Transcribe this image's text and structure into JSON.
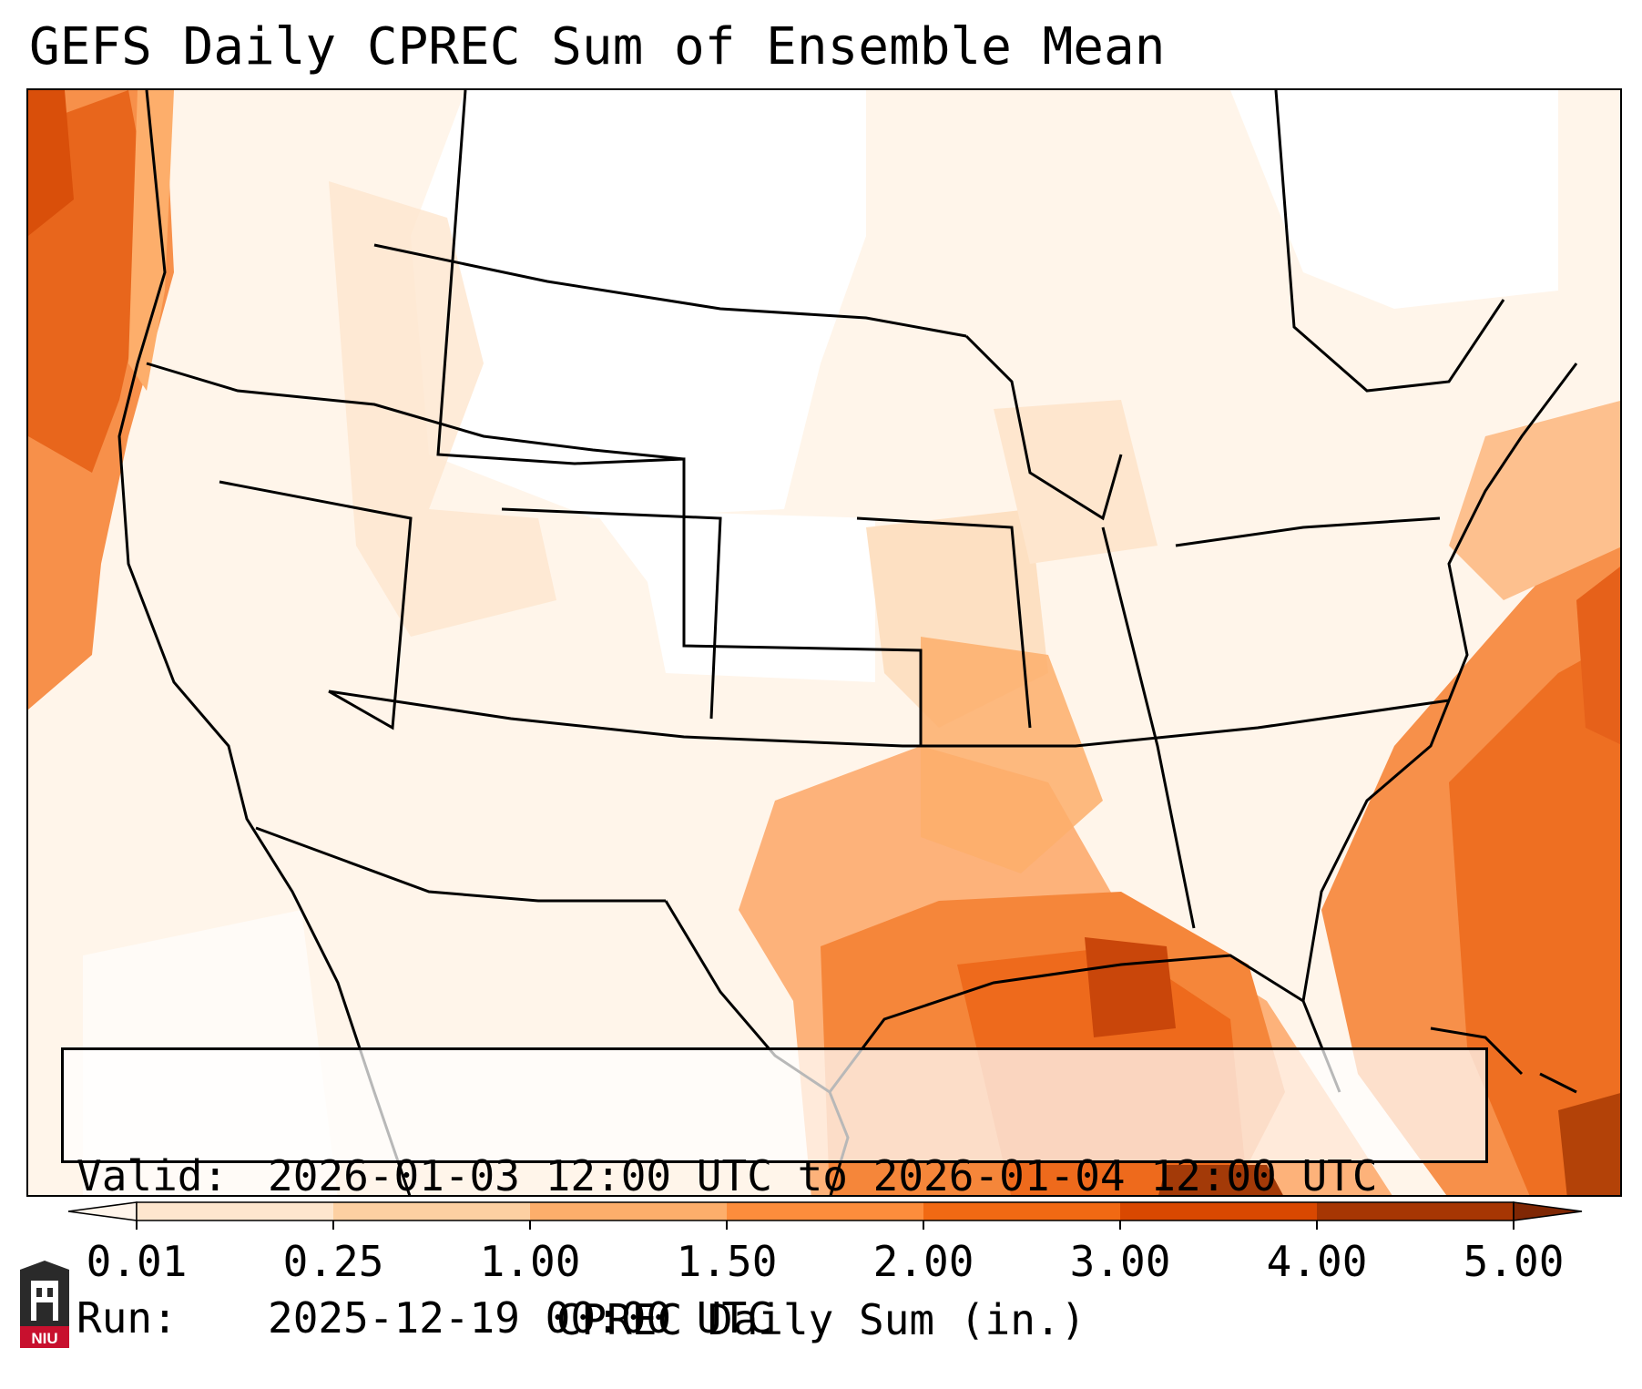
{
  "title": "GEFS Daily CPREC Sum of Ensemble Mean",
  "valid": {
    "label": "Valid:",
    "value": "2026-01-03 12:00 UTC to 2026-01-04 12:00 UTC"
  },
  "run": {
    "label": "Run:",
    "value": "2025-12-19 00:00 UTC"
  },
  "colorbar": {
    "title": "CPREC Daily Sum (in.)",
    "ticks": [
      "0.01",
      "0.25",
      "1.00",
      "1.50",
      "2.00",
      "3.00",
      "4.00",
      "5.00"
    ],
    "colors": [
      "#fff5eb",
      "#fee6ce",
      "#fdd0a2",
      "#fdae6b",
      "#fd8d3c",
      "#f16913",
      "#d94801",
      "#a63603",
      "#7f2704"
    ]
  },
  "logo": {
    "text": "NIU"
  }
}
